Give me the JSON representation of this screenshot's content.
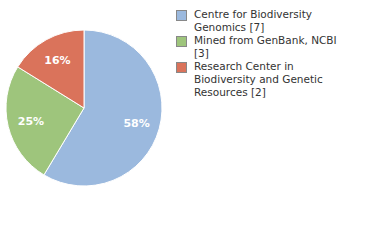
{
  "chart_data": {
    "type": "pie",
    "categories": [
      "Centre for Biodiversity Genomics [7]",
      "Mined from GenBank, NCBI [3]",
      "Research Center in Biodiversity and Genetic Resources [2]"
    ],
    "values": [
      58,
      25,
      16
    ],
    "value_labels": [
      "58%",
      "25%",
      "16%"
    ],
    "colors": [
      "#9bb9de",
      "#9ec57c",
      "#da735b"
    ],
    "data_labels": true,
    "legend": "right"
  }
}
